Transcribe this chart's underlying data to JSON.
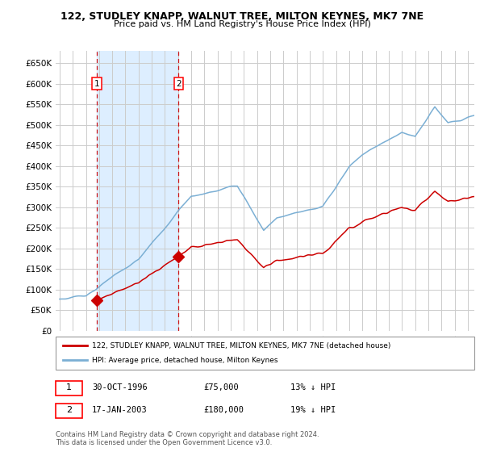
{
  "title": "122, STUDLEY KNAPP, WALNUT TREE, MILTON KEYNES, MK7 7NE",
  "subtitle": "Price paid vs. HM Land Registry's House Price Index (HPI)",
  "legend_line1": "122, STUDLEY KNAPP, WALNUT TREE, MILTON KEYNES, MK7 7NE (detached house)",
  "legend_line2": "HPI: Average price, detached house, Milton Keynes",
  "transaction1_date": "30-OCT-1996",
  "transaction1_price": 75000,
  "transaction1_pct": "13% ↓ HPI",
  "transaction2_date": "17-JAN-2003",
  "transaction2_price": 180000,
  "transaction2_pct": "19% ↓ HPI",
  "footnote": "Contains HM Land Registry data © Crown copyright and database right 2024.\nThis data is licensed under the Open Government Licence v3.0.",
  "hpi_color": "#7bafd4",
  "price_color": "#cc0000",
  "marker_color": "#cc0000",
  "shade_color": "#ddeeff",
  "vline_color": "#cc0000",
  "grid_color": "#cccccc",
  "background_color": "#ffffff",
  "ylim": [
    0,
    680000
  ],
  "yticks": [
    0,
    50000,
    100000,
    150000,
    200000,
    250000,
    300000,
    350000,
    400000,
    450000,
    500000,
    550000,
    600000,
    650000
  ],
  "x_start_year": 1994,
  "x_end_year": 2025,
  "transaction1_x": 1996.83,
  "transaction2_x": 2003.04
}
